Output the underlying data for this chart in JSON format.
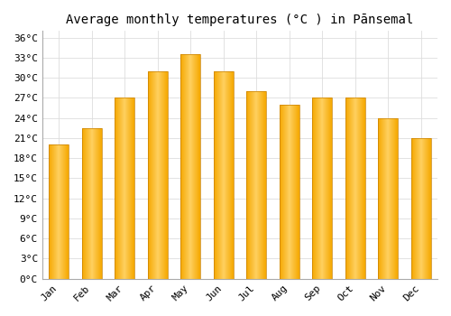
{
  "title": "Average monthly temperatures (°C ) in Pānsemal",
  "months": [
    "Jan",
    "Feb",
    "Mar",
    "Apr",
    "May",
    "Jun",
    "Jul",
    "Aug",
    "Sep",
    "Oct",
    "Nov",
    "Dec"
  ],
  "values": [
    20.0,
    22.5,
    27.0,
    31.0,
    33.5,
    31.0,
    28.0,
    26.0,
    27.0,
    27.0,
    24.0,
    21.0
  ],
  "bar_color_left": "#F5A800",
  "bar_color_center": "#FFD060",
  "bar_color_right": "#F5A800",
  "background_color": "#FFFFFF",
  "grid_color": "#DDDDDD",
  "ytick_labels": [
    "0°C",
    "3°C",
    "6°C",
    "9°C",
    "12°C",
    "15°C",
    "18°C",
    "21°C",
    "24°C",
    "27°C",
    "30°C",
    "33°C",
    "36°C"
  ],
  "ytick_values": [
    0,
    3,
    6,
    9,
    12,
    15,
    18,
    21,
    24,
    27,
    30,
    33,
    36
  ],
  "ylim": [
    0,
    37
  ],
  "title_fontsize": 10,
  "tick_fontsize": 8,
  "bar_width": 0.6
}
